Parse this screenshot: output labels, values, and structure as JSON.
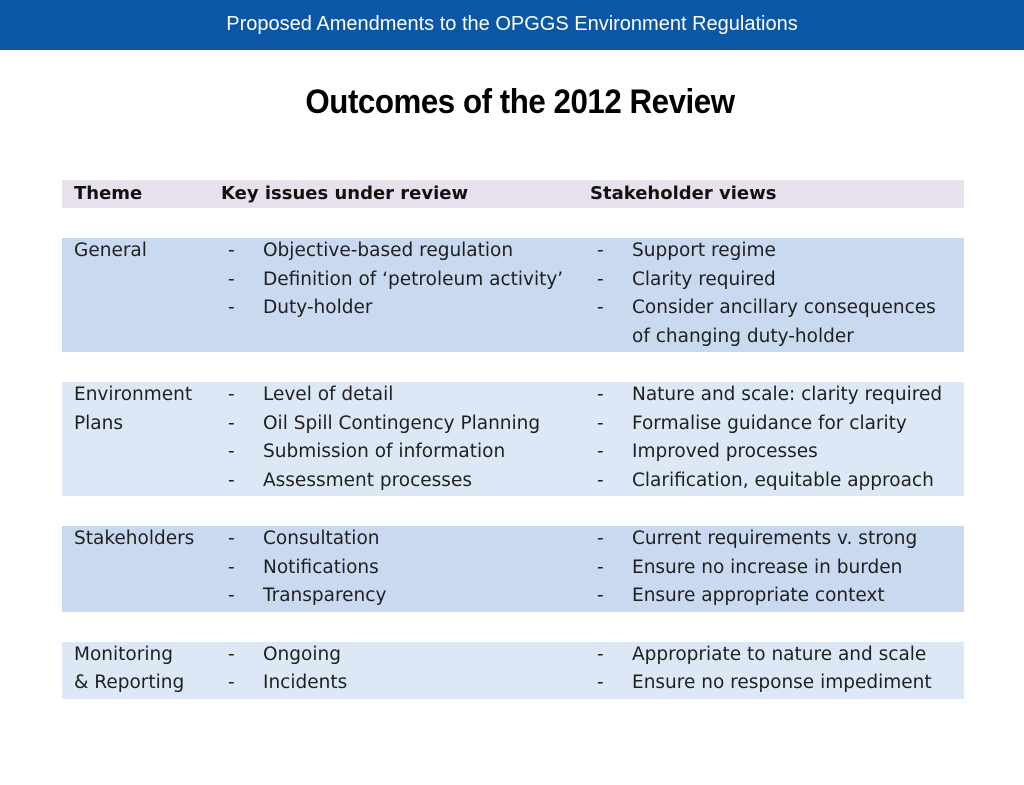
{
  "banner": "Proposed Amendments to the OPGGS Environment Regulations",
  "title": "Outcomes of the 2012 Review",
  "table": {
    "headers": [
      "Theme",
      "Key issues under review",
      "Stakeholder views"
    ],
    "groups": [
      {
        "theme": [
          "General"
        ],
        "lines": [
          {
            "issue": "Objective-based regulation",
            "view": "Support regime"
          },
          {
            "issue": "Definition of ‘petroleum activity’",
            "view": "Clarity required"
          },
          {
            "issue": "Duty-holder",
            "view": "Consider ancillary consequences"
          },
          {
            "issue": "",
            "view": "of changing duty-holder"
          }
        ]
      },
      {
        "theme": [
          "Environment",
          "Plans"
        ],
        "lines": [
          {
            "issue": "Level of detail",
            "view": "Nature and scale: clarity required"
          },
          {
            "issue": "Oil Spill Contingency Planning",
            "view": "Formalise guidance for clarity"
          },
          {
            "issue": "Submission of information",
            "view": "Improved processes"
          },
          {
            "issue": "Assessment processes",
            "view": "Clarification, equitable approach"
          }
        ]
      },
      {
        "theme": [
          "Stakeholders"
        ],
        "lines": [
          {
            "issue": "Consultation",
            "view": "Current requirements v. strong"
          },
          {
            "issue": "Notifications",
            "view": "Ensure no increase in burden"
          },
          {
            "issue": "Transparency",
            "view": "Ensure appropriate context"
          }
        ]
      },
      {
        "theme": [
          "Monitoring",
          "& Reporting"
        ],
        "lines": [
          {
            "issue": "Ongoing",
            "view": "Appropriate to nature and scale"
          },
          {
            "issue": "Incidents",
            "view": "Ensure no response impediment"
          }
        ]
      }
    ],
    "dash": "-"
  }
}
